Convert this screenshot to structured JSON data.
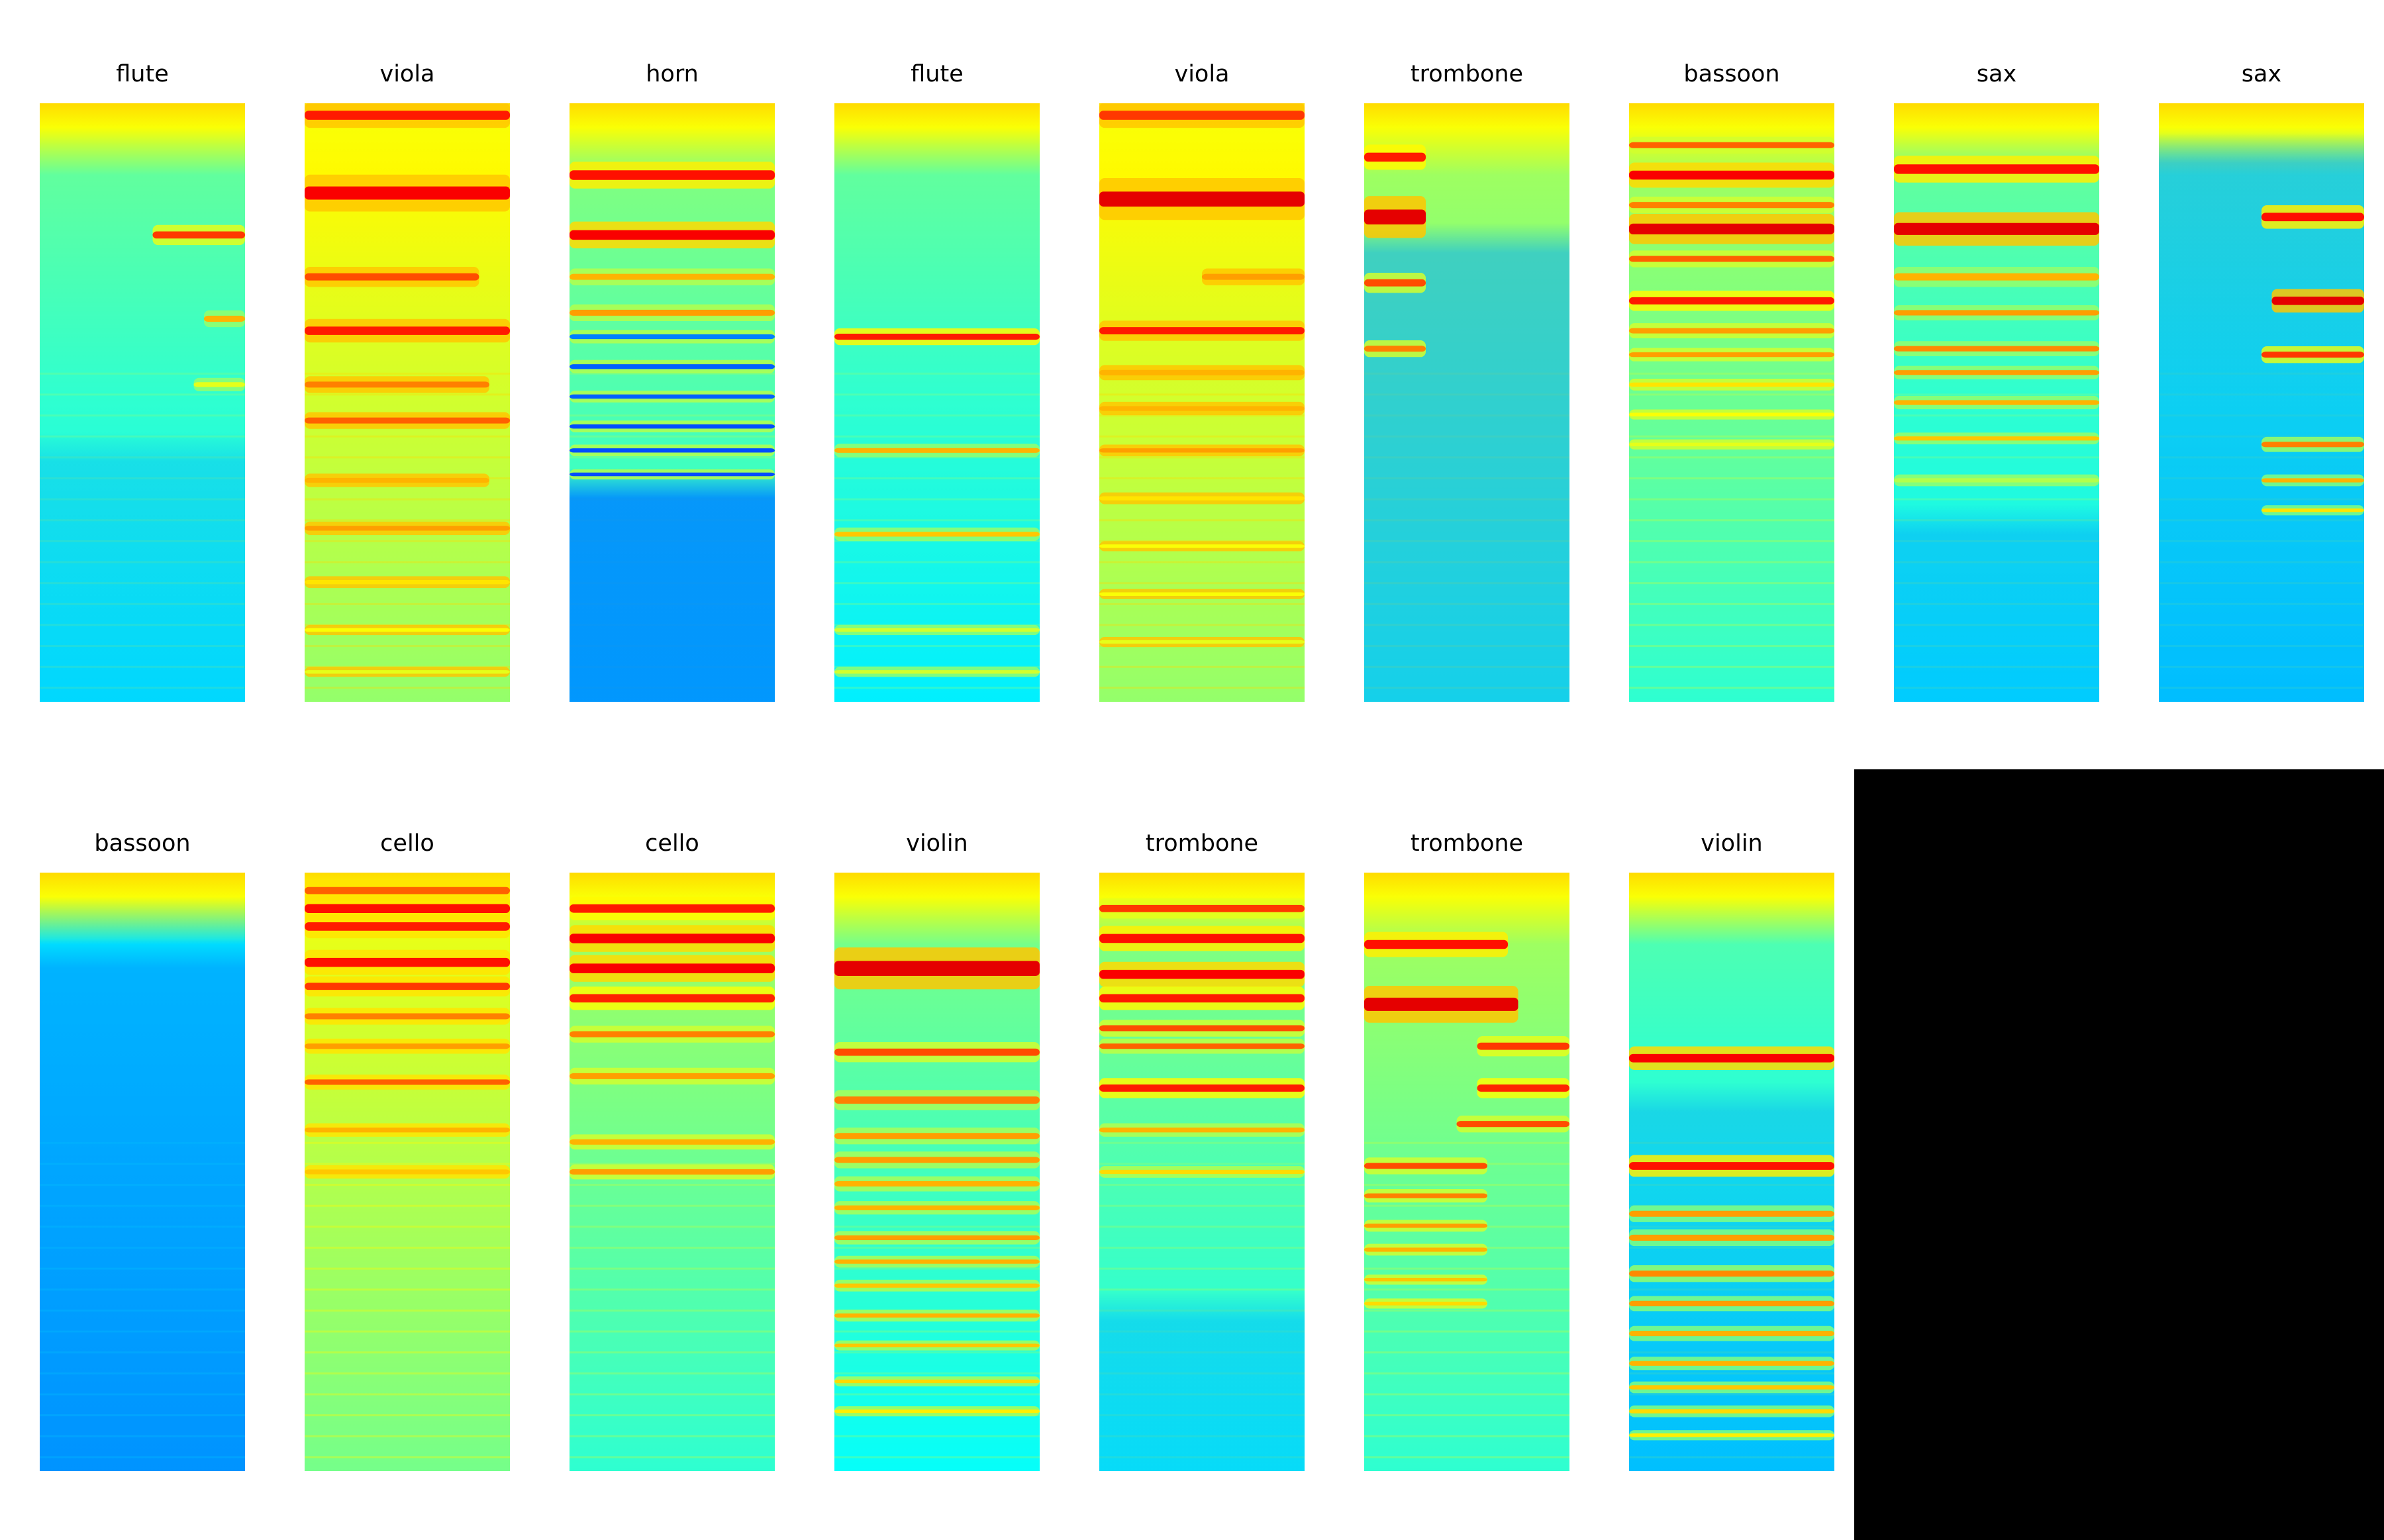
{
  "colors": {
    "background": "#ffffff",
    "empty_panel": "#000000",
    "colormap": "jet"
  },
  "panels": [
    {
      "title": "flute",
      "base": 0.42,
      "tint": "rgba(0,170,255,0.35)",
      "tint_from": 0.6,
      "bands": [
        [
          0.22,
          0.012,
          0.82,
          0.45
        ],
        [
          0.36,
          0.01,
          0.7,
          0.2
        ],
        [
          0.47,
          0.008,
          0.6,
          0.25
        ]
      ],
      "light": false
    },
    {
      "title": "viola",
      "base": 0.58,
      "tint": null,
      "tint_from": 1,
      "bands": [
        [
          0.02,
          0.015,
          0.85,
          1
        ],
        [
          0.15,
          0.022,
          0.88,
          1
        ],
        [
          0.29,
          0.012,
          0.8,
          0.85
        ],
        [
          0.38,
          0.014,
          0.85,
          1
        ],
        [
          0.47,
          0.01,
          0.75,
          0.9
        ],
        [
          0.53,
          0.01,
          0.78,
          1
        ],
        [
          0.63,
          0.008,
          0.7,
          0.9
        ],
        [
          0.71,
          0.008,
          0.72,
          1
        ],
        [
          0.8,
          0.007,
          0.65,
          1
        ],
        [
          0.88,
          0.006,
          0.62,
          1
        ],
        [
          0.95,
          0.006,
          0.6,
          1
        ]
      ],
      "light": true
    },
    {
      "title": "horn",
      "base": 0.45,
      "tint": "rgba(0,140,255,0.9)",
      "tint_from": 0.66,
      "bands": [
        [
          0.12,
          0.016,
          0.86,
          1
        ],
        [
          0.22,
          0.016,
          0.88,
          1
        ],
        [
          0.29,
          0.01,
          0.7,
          1
        ],
        [
          0.35,
          0.01,
          0.72,
          1
        ],
        [
          0.39,
          0.008,
          0.25,
          1
        ],
        [
          0.44,
          0.008,
          0.22,
          1
        ],
        [
          0.49,
          0.007,
          0.22,
          1
        ],
        [
          0.54,
          0.007,
          0.2,
          1
        ],
        [
          0.58,
          0.007,
          0.2,
          1
        ],
        [
          0.62,
          0.006,
          0.2,
          1
        ]
      ],
      "light": false
    },
    {
      "title": "flute",
      "base": 0.42,
      "tint": null,
      "tint_from": 1,
      "bands": [
        [
          0.39,
          0.01,
          0.85,
          1
        ],
        [
          0.58,
          0.008,
          0.7,
          1
        ],
        [
          0.72,
          0.008,
          0.68,
          1
        ],
        [
          0.88,
          0.006,
          0.58,
          1
        ],
        [
          0.95,
          0.006,
          0.58,
          1
        ]
      ],
      "light": false
    },
    {
      "title": "viola",
      "base": 0.58,
      "tint": null,
      "tint_from": 1,
      "bands": [
        [
          0.02,
          0.015,
          0.82,
          1
        ],
        [
          0.16,
          0.025,
          0.9,
          1
        ],
        [
          0.29,
          0.01,
          0.72,
          0.5
        ],
        [
          0.38,
          0.012,
          0.85,
          1
        ],
        [
          0.45,
          0.009,
          0.7,
          1
        ],
        [
          0.51,
          0.008,
          0.7,
          1
        ],
        [
          0.58,
          0.007,
          0.72,
          1
        ],
        [
          0.66,
          0.007,
          0.65,
          1
        ],
        [
          0.74,
          0.006,
          0.62,
          1
        ],
        [
          0.82,
          0.006,
          0.62,
          1
        ],
        [
          0.9,
          0.006,
          0.6,
          1
        ]
      ],
      "light": true
    },
    {
      "title": "trombone",
      "base": 0.48,
      "tint": "rgba(0,170,255,0.55)",
      "tint_from": 0.25,
      "bands": [
        [
          0.09,
          0.015,
          0.85,
          0.3
        ],
        [
          0.19,
          0.025,
          0.9,
          0.3
        ],
        [
          0.3,
          0.012,
          0.8,
          0.3
        ],
        [
          0.41,
          0.01,
          0.75,
          0.3
        ]
      ],
      "light": false
    },
    {
      "title": "bassoon",
      "base": 0.48,
      "tint": null,
      "tint_from": 1,
      "bands": [
        [
          0.07,
          0.01,
          0.78,
          1
        ],
        [
          0.12,
          0.015,
          0.88,
          1
        ],
        [
          0.17,
          0.01,
          0.75,
          1
        ],
        [
          0.21,
          0.018,
          0.9,
          1
        ],
        [
          0.26,
          0.01,
          0.78,
          1
        ],
        [
          0.33,
          0.012,
          0.85,
          1
        ],
        [
          0.38,
          0.009,
          0.72,
          1
        ],
        [
          0.42,
          0.008,
          0.72,
          1
        ],
        [
          0.47,
          0.007,
          0.65,
          1
        ],
        [
          0.52,
          0.006,
          0.62,
          1
        ],
        [
          0.57,
          0.006,
          0.6,
          1
        ]
      ],
      "light": false
    },
    {
      "title": "sax",
      "base": 0.42,
      "tint": "rgba(0,160,255,0.45)",
      "tint_from": 0.72,
      "bands": [
        [
          0.11,
          0.016,
          0.86,
          1
        ],
        [
          0.21,
          0.02,
          0.9,
          1
        ],
        [
          0.29,
          0.012,
          0.7,
          1
        ],
        [
          0.35,
          0.009,
          0.72,
          1
        ],
        [
          0.41,
          0.009,
          0.74,
          1
        ],
        [
          0.45,
          0.008,
          0.72,
          1
        ],
        [
          0.5,
          0.008,
          0.7,
          1
        ],
        [
          0.56,
          0.007,
          0.68,
          1
        ],
        [
          0.63,
          0.007,
          0.55,
          1
        ]
      ],
      "light": false
    },
    {
      "title": "sax",
      "base": 0.4,
      "tint": "rgba(0,160,255,0.5)",
      "tint_from": 0.1,
      "bands": [
        [
          0.19,
          0.014,
          0.86,
          0.5
        ],
        [
          0.33,
          0.014,
          0.9,
          0.45
        ],
        [
          0.42,
          0.01,
          0.82,
          0.5
        ],
        [
          0.57,
          0.009,
          0.75,
          0.5
        ],
        [
          0.63,
          0.007,
          0.7,
          0.5
        ],
        [
          0.68,
          0.006,
          0.65,
          0.5
        ]
      ],
      "light": false
    },
    {
      "title": "bassoon",
      "base": 0.3,
      "tint": "rgba(0,160,255,0.7)",
      "tint_from": 0.16,
      "bands": [],
      "light": false
    },
    {
      "title": "cello",
      "base": 0.55,
      "tint": null,
      "tint_from": 1,
      "bands": [
        [
          0.03,
          0.012,
          0.78,
          1
        ],
        [
          0.06,
          0.015,
          0.86,
          1
        ],
        [
          0.09,
          0.014,
          0.85,
          1
        ],
        [
          0.15,
          0.015,
          0.86,
          1
        ],
        [
          0.19,
          0.012,
          0.82,
          1
        ],
        [
          0.24,
          0.01,
          0.75,
          1
        ],
        [
          0.29,
          0.009,
          0.72,
          1
        ],
        [
          0.35,
          0.009,
          0.78,
          1
        ],
        [
          0.43,
          0.008,
          0.7,
          1
        ],
        [
          0.5,
          0.008,
          0.68,
          1
        ]
      ],
      "light": false
    },
    {
      "title": "cello",
      "base": 0.48,
      "tint": null,
      "tint_from": 1,
      "bands": [
        [
          0.06,
          0.014,
          0.85,
          1
        ],
        [
          0.11,
          0.016,
          0.88,
          1
        ],
        [
          0.16,
          0.016,
          0.88,
          1
        ],
        [
          0.21,
          0.014,
          0.84,
          1
        ],
        [
          0.27,
          0.01,
          0.75,
          1
        ],
        [
          0.34,
          0.01,
          0.72,
          1
        ],
        [
          0.45,
          0.009,
          0.7,
          1
        ],
        [
          0.5,
          0.009,
          0.72,
          1
        ]
      ],
      "light": false
    },
    {
      "title": "violin",
      "base": 0.44,
      "tint": null,
      "tint_from": 1,
      "bands": [
        [
          0.16,
          0.025,
          0.9,
          1
        ],
        [
          0.3,
          0.012,
          0.8,
          1
        ],
        [
          0.38,
          0.012,
          0.75,
          1
        ],
        [
          0.44,
          0.01,
          0.72,
          1
        ],
        [
          0.48,
          0.01,
          0.72,
          1
        ],
        [
          0.52,
          0.009,
          0.7,
          1
        ],
        [
          0.56,
          0.008,
          0.7,
          1
        ],
        [
          0.61,
          0.008,
          0.72,
          1
        ],
        [
          0.65,
          0.007,
          0.7,
          1
        ],
        [
          0.69,
          0.007,
          0.68,
          1
        ],
        [
          0.74,
          0.007,
          0.7,
          1
        ],
        [
          0.79,
          0.006,
          0.68,
          1
        ],
        [
          0.85,
          0.006,
          0.66,
          1
        ],
        [
          0.9,
          0.006,
          0.64,
          1
        ]
      ],
      "light": false
    },
    {
      "title": "trombone",
      "base": 0.45,
      "tint": "rgba(0,190,255,0.55)",
      "tint_from": 0.75,
      "bands": [
        [
          0.06,
          0.012,
          0.82,
          1
        ],
        [
          0.11,
          0.015,
          0.86,
          1
        ],
        [
          0.17,
          0.015,
          0.88,
          1
        ],
        [
          0.21,
          0.014,
          0.85,
          1
        ],
        [
          0.26,
          0.01,
          0.8,
          1
        ],
        [
          0.29,
          0.009,
          0.78,
          1
        ],
        [
          0.36,
          0.012,
          0.85,
          1
        ],
        [
          0.43,
          0.008,
          0.7,
          1
        ],
        [
          0.5,
          0.007,
          0.66,
          1
        ]
      ],
      "light": false
    },
    {
      "title": "trombone",
      "base": 0.48,
      "tint": null,
      "tint_from": 1,
      "bands": [
        [
          0.12,
          0.015,
          0.86,
          0.7
        ],
        [
          0.22,
          0.022,
          0.9,
          0.75
        ],
        [
          0.29,
          0.012,
          0.82,
          0.45
        ],
        [
          0.36,
          0.012,
          0.84,
          0.45
        ],
        [
          0.42,
          0.01,
          0.8,
          0.55
        ],
        [
          0.49,
          0.01,
          0.8,
          0.6
        ],
        [
          0.54,
          0.008,
          0.75,
          0.6
        ],
        [
          0.59,
          0.007,
          0.72,
          0.6
        ],
        [
          0.63,
          0.007,
          0.7,
          0.6
        ],
        [
          0.68,
          0.006,
          0.68,
          0.6
        ],
        [
          0.72,
          0.006,
          0.66,
          0.6
        ]
      ],
      "light": false
    },
    {
      "title": "violin",
      "base": 0.4,
      "tint": "rgba(0,140,255,0.35)",
      "tint_from": 0.4,
      "bands": [
        [
          0.31,
          0.014,
          0.88,
          1
        ],
        [
          0.49,
          0.013,
          0.86,
          1
        ],
        [
          0.57,
          0.01,
          0.72,
          1
        ],
        [
          0.61,
          0.01,
          0.72,
          1
        ],
        [
          0.67,
          0.01,
          0.74,
          1
        ],
        [
          0.72,
          0.009,
          0.72,
          1
        ],
        [
          0.77,
          0.009,
          0.7,
          1
        ],
        [
          0.82,
          0.008,
          0.7,
          1
        ],
        [
          0.86,
          0.007,
          0.68,
          1
        ],
        [
          0.9,
          0.007,
          0.66,
          1
        ],
        [
          0.94,
          0.006,
          0.64,
          1
        ]
      ],
      "light": false
    }
  ]
}
